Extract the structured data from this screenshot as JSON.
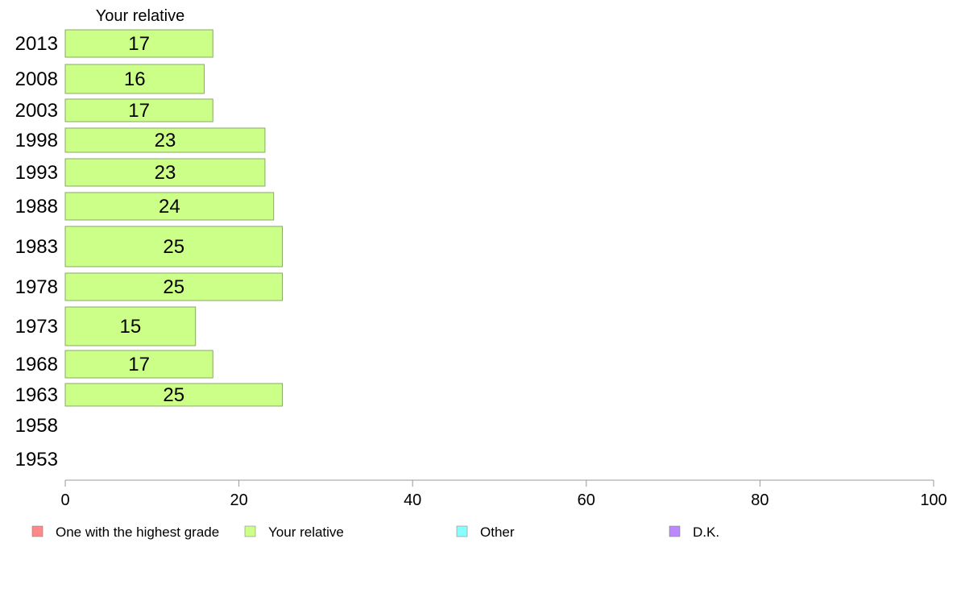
{
  "chart_data": {
    "type": "bar",
    "orientation": "horizontal",
    "series_header": "Your relative",
    "categories": [
      "2013",
      "2008",
      "2003",
      "1998",
      "1993",
      "1988",
      "1983",
      "1978",
      "1973",
      "1968",
      "1963",
      "1958",
      "1953"
    ],
    "series": [
      {
        "name": "Your relative",
        "color": "#ccff88",
        "values": [
          17,
          16,
          17,
          23,
          23,
          24,
          25,
          25,
          15,
          17,
          25,
          null,
          null
        ]
      }
    ],
    "data_labels": [
      "17",
      "16",
      "17",
      "23",
      "23",
      "24",
      "25",
      "25",
      "15",
      "17",
      "25",
      "",
      ""
    ],
    "xlim": [
      0,
      100
    ],
    "x_ticks": [
      "0",
      "20",
      "40",
      "60",
      "80",
      "100"
    ],
    "grid": false,
    "legend_position": "bottom",
    "legend": [
      {
        "label": "One with the highest grade",
        "color": "#ff8888"
      },
      {
        "label": "Your relative",
        "color": "#ccff88"
      },
      {
        "label": "Other",
        "color": "#88ffff"
      },
      {
        "label": "D.K.",
        "color": "#bb88ff"
      }
    ]
  }
}
